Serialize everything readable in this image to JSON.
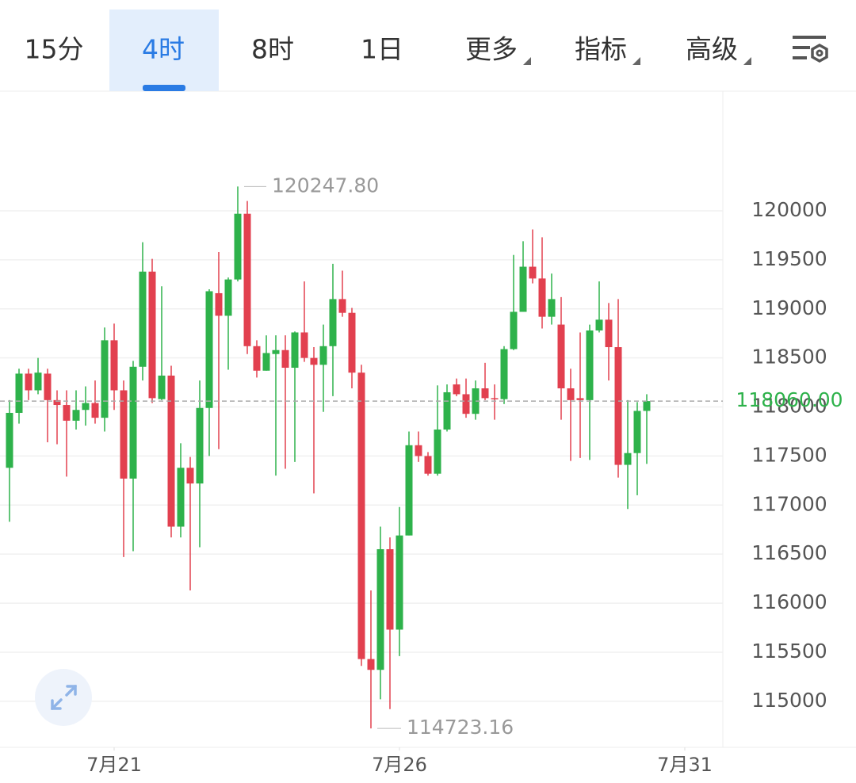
{
  "tabs": [
    "15分",
    "4时",
    "8时",
    "1日",
    "更多",
    "指标",
    "高级"
  ],
  "active_tab": 1,
  "dropdown_tabs": [
    4,
    5,
    6
  ],
  "chart_data": {
    "type": "candlestick",
    "open": [
      117380,
      117940,
      118340,
      118170,
      118340,
      118070,
      118020,
      117860,
      117970,
      118040,
      117890,
      118680,
      118170,
      117270,
      118410,
      119380,
      118080,
      118320,
      116780,
      117380,
      117220,
      117990,
      119160,
      118930,
      119300,
      119970,
      118620,
      118370,
      118540,
      118580,
      118400,
      118760,
      118500,
      118430,
      118620,
      119100,
      118960,
      118350,
      115430,
      115320,
      116550,
      115730,
      116690,
      117610,
      117500,
      117320,
      117770,
      118230,
      118130,
      117930,
      118190,
      118090,
      118080,
      118590,
      118970,
      119430,
      119310,
      118920,
      118840,
      118190,
      118090,
      118070,
      118780,
      118890,
      118610,
      117410,
      117530,
      117960
    ],
    "high": [
      118070,
      118390,
      118390,
      118500,
      118390,
      118170,
      118170,
      118170,
      118210,
      118270,
      118810,
      118850,
      118270,
      118470,
      119680,
      119510,
      119230,
      118420,
      117630,
      117490,
      118270,
      119200,
      119580,
      119320,
      120247.8,
      120100,
      118680,
      118730,
      118730,
      118730,
      118770,
      119280,
      118610,
      118840,
      119460,
      119390,
      119010,
      118430,
      116130,
      116780,
      116670,
      116980,
      117750,
      117750,
      117540,
      118220,
      118230,
      118290,
      118290,
      118270,
      118450,
      118230,
      118620,
      119550,
      119690,
      119810,
      119730,
      119360,
      119120,
      118390,
      118760,
      118840,
      119280,
      119060,
      119100,
      118070,
      118050,
      118130
    ],
    "low": [
      116830,
      117830,
      118070,
      118130,
      117640,
      117620,
      117290,
      117770,
      117810,
      117830,
      117750,
      117970,
      116470,
      116530,
      118270,
      118040,
      118070,
      116670,
      116670,
      116130,
      116570,
      117500,
      117570,
      118380,
      119280,
      118540,
      118300,
      118370,
      117300,
      117370,
      117440,
      118460,
      117120,
      117950,
      118110,
      118920,
      118190,
      115360,
      114723.16,
      115020,
      114920,
      115460,
      116690,
      117440,
      117300,
      117300,
      117750,
      118110,
      117890,
      117870,
      118070,
      117870,
      118030,
      118580,
      118970,
      119260,
      118800,
      118840,
      117870,
      117450,
      117480,
      117460,
      118760,
      118270,
      117280,
      116960,
      117100,
      117420
    ],
    "close": [
      117940,
      118340,
      118170,
      118350,
      118070,
      118020,
      117860,
      117970,
      118040,
      117890,
      118680,
      118170,
      117270,
      118410,
      119380,
      118090,
      118320,
      116780,
      117380,
      117220,
      117990,
      119180,
      118930,
      119300,
      119970,
      118620,
      118370,
      118550,
      118580,
      118400,
      118760,
      118500,
      118430,
      118620,
      119100,
      118960,
      118350,
      115430,
      115320,
      116550,
      115730,
      116690,
      117610,
      117500,
      117320,
      117770,
      118150,
      118130,
      117930,
      118190,
      118090,
      118080,
      118590,
      118970,
      119430,
      119310,
      118920,
      119100,
      118190,
      118070,
      118070,
      118780,
      118890,
      118610,
      117410,
      117530,
      117960,
      118060
    ],
    "up_color": "#2eb24b",
    "down_color": "#e2404f",
    "ylim": [
      114530,
      121220
    ],
    "yticks": [
      115000,
      115500,
      116000,
      116500,
      117000,
      117500,
      118000,
      118500,
      119000,
      119500,
      120000
    ],
    "xlim": [
      -1,
      75
    ],
    "xticks": [
      {
        "value": 11,
        "label": "7月21"
      },
      {
        "value": 41,
        "label": "7月26"
      },
      {
        "value": 71,
        "label": "7月31"
      }
    ],
    "grid": true,
    "high_label": "120247.80",
    "low_label": "114723.16",
    "last_price_label": "118060.00",
    "last_price_color": "#2eb24b"
  }
}
